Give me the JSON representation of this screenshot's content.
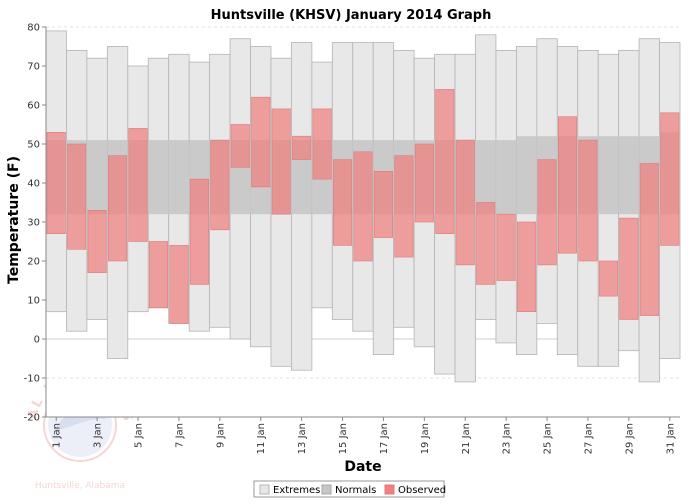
{
  "chart_data": {
    "type": "bar",
    "title": "Huntsville (KHSV) January 2014 Graph",
    "xlabel": "Date",
    "ylabel": "Temperature (F)",
    "ylim": [
      -20,
      80
    ],
    "yticks": [
      -20,
      -10,
      0,
      10,
      20,
      30,
      40,
      50,
      60,
      70,
      80
    ],
    "grid": "horizontal dashed",
    "legend_placement": "bottom-center",
    "legend": [
      "Extremes",
      "Normals",
      "Observed"
    ],
    "colors": {
      "extremes": "#e8e8e8",
      "extremes_edge": "#b4b4b4",
      "normals": "#c6c6c6",
      "observed": "#f08080",
      "observed_edge": "#e07a7a",
      "axis_line": "#888888"
    },
    "x": [
      "1 Jan",
      "2 Jan",
      "3 Jan",
      "4 Jan",
      "5 Jan",
      "6 Jan",
      "7 Jan",
      "8 Jan",
      "9 Jan",
      "10 Jan",
      "11 Jan",
      "12 Jan",
      "13 Jan",
      "14 Jan",
      "15 Jan",
      "16 Jan",
      "17 Jan",
      "18 Jan",
      "19 Jan",
      "20 Jan",
      "21 Jan",
      "22 Jan",
      "23 Jan",
      "24 Jan",
      "25 Jan",
      "26 Jan",
      "27 Jan",
      "28 Jan",
      "29 Jan",
      "30 Jan",
      "31 Jan"
    ],
    "x_tick_labels": [
      "1 Jan",
      "3 Jan",
      "5 Jan",
      "7 Jan",
      "9 Jan",
      "11 Jan",
      "13 Jan",
      "15 Jan",
      "17 Jan",
      "19 Jan",
      "21 Jan",
      "23 Jan",
      "25 Jan",
      "27 Jan",
      "29 Jan",
      "31 Jan"
    ],
    "series": [
      {
        "name": "Extremes",
        "low": [
          7,
          2,
          5,
          -5,
          7,
          8,
          4,
          2,
          3,
          0,
          -2,
          -7,
          -8,
          8,
          5,
          2,
          -4,
          3,
          -2,
          -9,
          -11,
          5,
          -1,
          -4,
          4,
          -4,
          -7,
          -7,
          -3,
          -11,
          -5
        ],
        "high": [
          79,
          74,
          72,
          75,
          70,
          72,
          73,
          71,
          73,
          77,
          75,
          72,
          76,
          71,
          76,
          76,
          76,
          74,
          72,
          73,
          73,
          78,
          74,
          75,
          77,
          75,
          74,
          73,
          74,
          77,
          76
        ]
      },
      {
        "name": "Normals",
        "low": [
          32,
          32,
          32,
          32,
          32,
          32,
          32,
          32,
          32,
          32,
          32,
          32,
          32,
          32,
          32,
          32,
          32,
          32,
          32,
          32,
          32,
          32,
          32,
          32,
          32,
          32,
          32,
          32,
          32,
          32,
          32
        ],
        "high": [
          51,
          51,
          51,
          51,
          51,
          51,
          51,
          51,
          51,
          51,
          51,
          51,
          51,
          51,
          51,
          51,
          51,
          51,
          51,
          51,
          51,
          51,
          51,
          52,
          52,
          52,
          52,
          52,
          52,
          52,
          53
        ]
      },
      {
        "name": "Observed",
        "low": [
          27,
          23,
          17,
          20,
          25,
          8,
          4,
          14,
          28,
          44,
          39,
          32,
          46,
          41,
          24,
          20,
          26,
          21,
          30,
          27,
          19,
          14,
          15,
          7,
          19,
          22,
          20,
          11,
          5,
          6,
          24
        ],
        "high": [
          53,
          50,
          33,
          47,
          54,
          25,
          24,
          41,
          51,
          55,
          62,
          59,
          52,
          59,
          46,
          48,
          43,
          47,
          50,
          64,
          51,
          35,
          32,
          30,
          46,
          57,
          51,
          20,
          31,
          45,
          58
        ]
      }
    ],
    "watermark": {
      "arc_text": "NATIONAL WEATHER SERVICE",
      "office": "Huntsville, Alabama"
    }
  }
}
